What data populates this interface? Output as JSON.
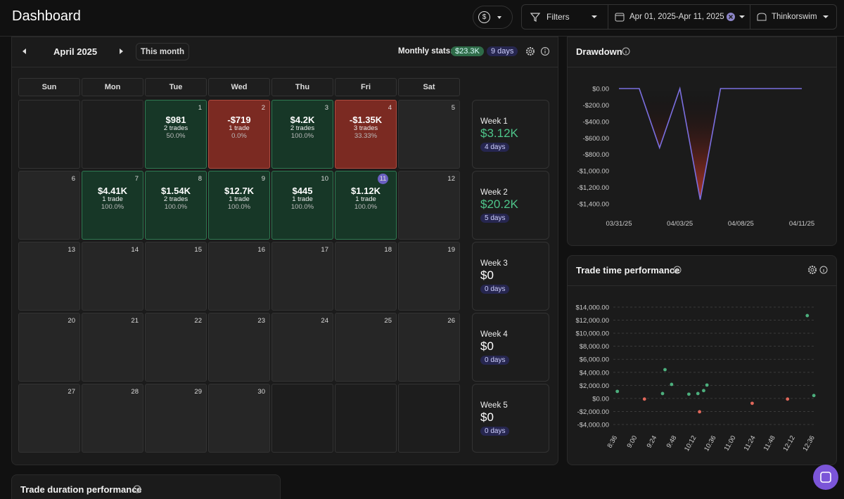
{
  "header": {
    "title": "Dashboard",
    "currency": "$",
    "filters": "Filters",
    "date_range": "Apr 01, 2025-Apr 11, 2025",
    "account": "Thinkorswim"
  },
  "calendar": {
    "month": "April 2025",
    "this_month": "This month",
    "stats_label": "Monthly stats:",
    "stats_pnl": "$23.3K",
    "stats_days": "9 days",
    "today": 11,
    "weekdays": [
      "Sun",
      "Mon",
      "Tue",
      "Wed",
      "Thu",
      "Fri",
      "Sat"
    ],
    "weeks": [
      {
        "label": "Week 1",
        "pnl": "$3.12K",
        "days": "4 days",
        "color": "#4ec58a",
        "cells": [
          null,
          null,
          {
            "day": 1,
            "pnl": "$981",
            "trades": "2 trades",
            "winrate": "50.0%"
          },
          {
            "day": 2,
            "pnl": "-$719",
            "trades": "1 trade",
            "winrate": "0.0%"
          },
          {
            "day": 3,
            "pnl": "$4.2K",
            "trades": "2 trades",
            "winrate": "100.0%"
          },
          {
            "day": 4,
            "pnl": "-$1.35K",
            "trades": "3 trades",
            "winrate": "33.33%"
          },
          {
            "day": 5
          }
        ]
      },
      {
        "label": "Week 2",
        "pnl": "$20.2K",
        "days": "5 days",
        "color": "#4ec58a",
        "cells": [
          {
            "day": 6
          },
          {
            "day": 7,
            "pnl": "$4.41K",
            "trades": "1 trade",
            "winrate": "100.0%"
          },
          {
            "day": 8,
            "pnl": "$1.54K",
            "trades": "2 trades",
            "winrate": "100.0%"
          },
          {
            "day": 9,
            "pnl": "$12.7K",
            "trades": "1 trade",
            "winrate": "100.0%"
          },
          {
            "day": 10,
            "pnl": "$445",
            "trades": "1 trade",
            "winrate": "100.0%"
          },
          {
            "day": 11,
            "pnl": "$1.12K",
            "trades": "1 trade",
            "winrate": "100.0%"
          },
          {
            "day": 12
          }
        ]
      },
      {
        "label": "Week 3",
        "pnl": "$0",
        "days": "0 days",
        "color": "#ffffff",
        "cells": [
          {
            "day": 13
          },
          {
            "day": 14
          },
          {
            "day": 15
          },
          {
            "day": 16
          },
          {
            "day": 17
          },
          {
            "day": 18
          },
          {
            "day": 19
          }
        ]
      },
      {
        "label": "Week 4",
        "pnl": "$0",
        "days": "0 days",
        "color": "#ffffff",
        "cells": [
          {
            "day": 20
          },
          {
            "day": 21
          },
          {
            "day": 22
          },
          {
            "day": 23
          },
          {
            "day": 24
          },
          {
            "day": 25
          },
          {
            "day": 26
          }
        ]
      },
      {
        "label": "Week 5",
        "pnl": "$0",
        "days": "0 days",
        "color": "#ffffff",
        "cells": [
          {
            "day": 27
          },
          {
            "day": 28
          },
          {
            "day": 29
          },
          {
            "day": 30
          },
          null,
          null,
          null
        ]
      }
    ]
  },
  "chart_data": [
    {
      "type": "line",
      "title": "Drawdown",
      "color": "#7b6fe0",
      "area_color": "#c0392b",
      "categories": [
        "03/31/25",
        null,
        null,
        "04/03/25",
        null,
        null,
        "04/08/25",
        null,
        null,
        "04/11/25"
      ],
      "values": [
        0,
        0,
        -719,
        0,
        -1350,
        0,
        0,
        0,
        0,
        0
      ],
      "ylim": [
        -1400,
        0
      ],
      "yticks": [
        {
          "value": 0,
          "label": "$0.00"
        },
        {
          "value": -200,
          "label": "-$200.00"
        },
        {
          "value": -400,
          "label": "-$400.00"
        },
        {
          "value": -600,
          "label": "-$600.00"
        },
        {
          "value": -800,
          "label": "-$800.00"
        },
        {
          "value": -1000,
          "label": "-$1,000.00"
        },
        {
          "value": -1200,
          "label": "-$1,200.00"
        },
        {
          "value": -1400,
          "label": "-$1,400.00"
        }
      ],
      "grid": false
    },
    {
      "type": "scatter",
      "title": "Trade time performance",
      "positive_color": "#4caf7d",
      "negative_color": "#e0675a",
      "x": [
        516,
        549,
        571,
        574,
        582,
        603,
        614,
        616,
        621,
        625,
        680,
        723,
        747,
        755
      ],
      "values": [
        1080,
        -100,
        750,
        4410,
        2150,
        650,
        750,
        -2050,
        1200,
        2050,
        -750,
        -100,
        12700,
        445
      ],
      "xlim": [
        506,
        766
      ],
      "xticks": [
        {
          "value": 516,
          "label": "8:36"
        },
        {
          "value": 540,
          "label": "9:00"
        },
        {
          "value": 564,
          "label": "9:24"
        },
        {
          "value": 588,
          "label": "9:48"
        },
        {
          "value": 612,
          "label": "10:12"
        },
        {
          "value": 636,
          "label": "10:36"
        },
        {
          "value": 660,
          "label": "11:00"
        },
        {
          "value": 684,
          "label": "11:24"
        },
        {
          "value": 708,
          "label": "11:48"
        },
        {
          "value": 732,
          "label": "12:12"
        },
        {
          "value": 756,
          "label": "12:36"
        }
      ],
      "ylim": [
        -4000,
        14000
      ],
      "yticks": [
        {
          "value": 14000,
          "label": "$14,000.00"
        },
        {
          "value": 12000,
          "label": "$12,000.00"
        },
        {
          "value": 10000,
          "label": "$10,000.00"
        },
        {
          "value": 8000,
          "label": "$8,000.00"
        },
        {
          "value": 6000,
          "label": "$6,000.00"
        },
        {
          "value": 4000,
          "label": "$4,000.00"
        },
        {
          "value": 2000,
          "label": "$2,000.00"
        },
        {
          "value": 0,
          "label": "$0.00"
        },
        {
          "value": -2000,
          "label": "-$2,000.00"
        },
        {
          "value": -4000,
          "label": "-$4,000.00"
        }
      ],
      "grid": true
    }
  ],
  "duration_panel": {
    "title": "Trade duration performance"
  }
}
